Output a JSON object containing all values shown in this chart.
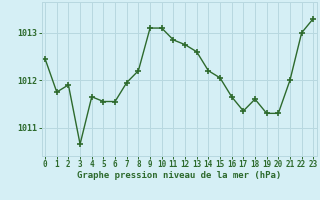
{
  "x": [
    0,
    1,
    2,
    3,
    4,
    5,
    6,
    7,
    8,
    9,
    10,
    11,
    12,
    13,
    14,
    15,
    16,
    17,
    18,
    19,
    20,
    21,
    22,
    23
  ],
  "y": [
    1012.45,
    1011.75,
    1011.9,
    1010.65,
    1011.65,
    1011.55,
    1011.55,
    1011.95,
    1012.2,
    1013.1,
    1013.1,
    1012.85,
    1012.75,
    1012.6,
    1012.2,
    1012.05,
    1011.65,
    1011.35,
    1011.6,
    1011.3,
    1011.3,
    1012.0,
    1013.0,
    1013.3
  ],
  "line_color": "#2d6a2d",
  "marker": "+",
  "marker_size": 4,
  "marker_lw": 1.2,
  "line_width": 1.0,
  "background_color": "#d5eff5",
  "grid_color": "#b8d8e0",
  "xlabel": "Graphe pression niveau de la mer (hPa)",
  "xlabel_color": "#2d6a2d",
  "tick_color": "#2d6a2d",
  "ylim": [
    1010.4,
    1013.65
  ],
  "yticks": [
    1011,
    1012,
    1013
  ],
  "xlim": [
    -0.3,
    23.3
  ],
  "xticks": [
    0,
    1,
    2,
    3,
    4,
    5,
    6,
    7,
    8,
    9,
    10,
    11,
    12,
    13,
    14,
    15,
    16,
    17,
    18,
    19,
    20,
    21,
    22,
    23
  ],
  "tick_fontsize": 5.5,
  "xlabel_fontsize": 6.5,
  "ytick_fontsize": 6.0
}
